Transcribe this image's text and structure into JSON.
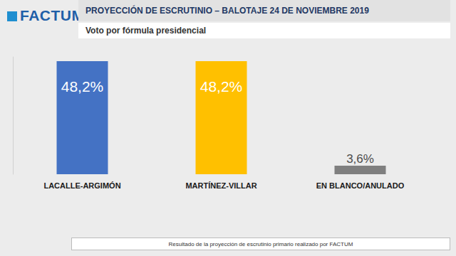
{
  "logo": "FACTUM",
  "chart_data": {
    "type": "bar",
    "title": "PROYECCIÓN DE ESCRUTINIO – BALOTAJE 24 DE NOVIEMBRE 2019",
    "subtitle": "Voto por fórmula presidencial",
    "categories": [
      "LACALLE-ARGIMÓN",
      "MARTÍNEZ-VILLAR",
      "EN BLANCO/ANULADO"
    ],
    "values": [
      48.2,
      48.2,
      3.6
    ],
    "value_labels": [
      "48,2%",
      "48,2%",
      "3,6%"
    ],
    "colors": [
      "#4472C4",
      "#FFC000",
      "#7F7F7F"
    ],
    "ylim": [
      0,
      50
    ],
    "data_labels": true,
    "tick_labels": "x",
    "grid": false
  },
  "note": "Resultado de la proyección de escrutinio primario realizado por FACTUM"
}
